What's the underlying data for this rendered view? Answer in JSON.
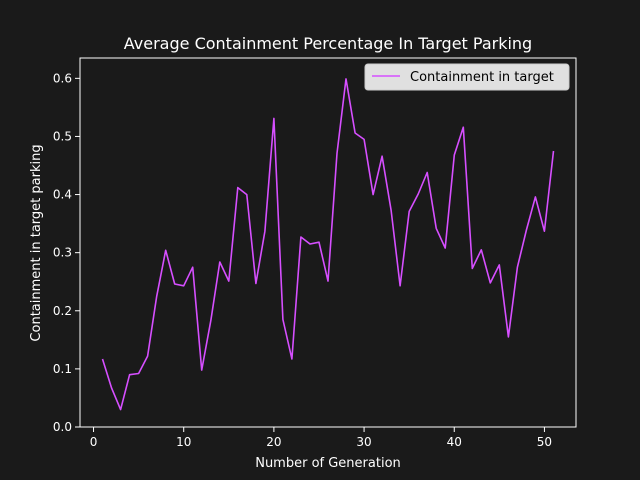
{
  "colors": {
    "background": "#1a1a1a",
    "axes": "#ffffff",
    "line": "#d64fff",
    "legend_bg": "#e0e0e0",
    "legend_border": "#cccccc",
    "legend_text": "#000000"
  },
  "chart_data": {
    "type": "line",
    "title": "Average Containment Percentage In Target Parking",
    "xlabel": "Number of Generation",
    "ylabel": "Containment in target parking",
    "xlim": [
      -1.5,
      53.5
    ],
    "ylim": [
      0,
      0.635
    ],
    "xticks": [
      0,
      10,
      20,
      30,
      40,
      50
    ],
    "yticks": [
      0.0,
      0.1,
      0.2,
      0.3,
      0.4,
      0.5,
      0.6
    ],
    "xtick_labels": [
      "0",
      "10",
      "20",
      "30",
      "40",
      "50"
    ],
    "ytick_labels": [
      "0.0",
      "0.1",
      "0.2",
      "0.3",
      "0.4",
      "0.5",
      "0.6"
    ],
    "grid": false,
    "legend_position": "top-right",
    "series": [
      {
        "name": "Containment in target",
        "x": [
          1,
          2,
          3,
          4,
          5,
          6,
          7,
          8,
          9,
          10,
          11,
          12,
          13,
          14,
          15,
          16,
          17,
          18,
          19,
          20,
          21,
          22,
          23,
          24,
          25,
          26,
          27,
          28,
          29,
          30,
          31,
          32,
          33,
          34,
          35,
          36,
          37,
          38,
          39,
          40,
          41,
          42,
          43,
          44,
          45,
          46,
          47,
          48,
          49,
          50,
          51
        ],
        "y": [
          0.117,
          0.067,
          0.03,
          0.09,
          0.092,
          0.122,
          0.225,
          0.304,
          0.246,
          0.243,
          0.275,
          0.098,
          0.183,
          0.284,
          0.251,
          0.412,
          0.4,
          0.247,
          0.337,
          0.531,
          0.185,
          0.117,
          0.327,
          0.315,
          0.318,
          0.251,
          0.471,
          0.599,
          0.506,
          0.495,
          0.4,
          0.466,
          0.373,
          0.243,
          0.371,
          0.401,
          0.438,
          0.342,
          0.308,
          0.468,
          0.516,
          0.273,
          0.305,
          0.248,
          0.279,
          0.155,
          0.275,
          0.339,
          0.396,
          0.337,
          0.475
        ]
      }
    ]
  }
}
